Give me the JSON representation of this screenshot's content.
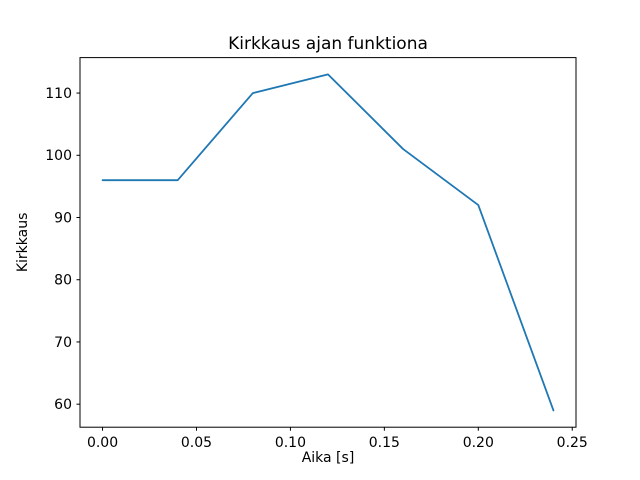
{
  "figure": {
    "background_color": "#ffffff",
    "spine_color": "#000000",
    "text_color": "#000000"
  },
  "chart_data": {
    "type": "line",
    "title": "Kirkkaus ajan funktiona",
    "xlabel": "Aika [s]",
    "ylabel": "Kirkkaus",
    "x": [
      0.0,
      0.04,
      0.08,
      0.12,
      0.16,
      0.2,
      0.24
    ],
    "y": [
      96,
      96,
      110,
      113,
      101,
      92,
      59
    ],
    "series": [
      {
        "name": "Kirkkaus",
        "values": [
          96,
          96,
          110,
          113,
          101,
          92,
          59
        ]
      }
    ],
    "xlim": [
      -0.012,
      0.252
    ],
    "ylim": [
      56.3,
      115.7
    ],
    "xticks": [
      0.0,
      0.05,
      0.1,
      0.15,
      0.2,
      0.25
    ],
    "xtick_labels": [
      "0.00",
      "0.05",
      "0.10",
      "0.15",
      "0.20",
      "0.25"
    ],
    "yticks": [
      60,
      70,
      80,
      90,
      100,
      110
    ],
    "ytick_labels": [
      "60",
      "70",
      "80",
      "90",
      "100",
      "110"
    ],
    "line_color": "#1f77b4",
    "line_width": 1.8,
    "grid": false,
    "legend": "none"
  }
}
